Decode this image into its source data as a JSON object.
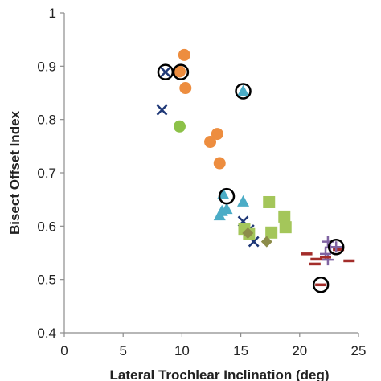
{
  "chart_data": {
    "type": "scatter",
    "xlabel": "Lateral Trochlear Inclination (deg)",
    "ylabel": "Bisect Offset Index",
    "xlim": [
      0,
      25
    ],
    "ylim": [
      0.4,
      1.0
    ],
    "x_ticks": [
      "0",
      "5",
      "10",
      "15",
      "20",
      "25"
    ],
    "y_ticks": [
      "0.4",
      "0.5",
      "0.6",
      "0.7",
      "0.8",
      "0.9",
      "1"
    ],
    "grid": false,
    "legend": "none",
    "series": [
      {
        "marker": "circle",
        "color": "#ed8d3f",
        "points": [
          [
            10.2,
            0.921
          ],
          [
            9.8,
            0.89
          ],
          [
            10.3,
            0.859
          ],
          [
            13.0,
            0.773
          ],
          [
            12.4,
            0.758
          ],
          [
            13.2,
            0.718
          ]
        ]
      },
      {
        "marker": "circle",
        "color": "#8cc148",
        "points": [
          [
            9.8,
            0.787
          ]
        ]
      },
      {
        "marker": "x",
        "color": "#1f3877",
        "points": [
          [
            8.3,
            0.818
          ],
          [
            15.2,
            0.609
          ],
          [
            15.7,
            0.593
          ],
          [
            16.1,
            0.571
          ]
        ]
      },
      {
        "marker": "triangle",
        "color": "#4bacc6",
        "points": [
          [
            15.2,
            0.853
          ],
          [
            13.5,
            0.66
          ],
          [
            15.2,
            0.646
          ],
          [
            13.4,
            0.628
          ],
          [
            13.8,
            0.632
          ],
          [
            13.2,
            0.62
          ]
        ]
      },
      {
        "marker": "square",
        "color": "#a4c65a",
        "points": [
          [
            17.4,
            0.645
          ],
          [
            18.7,
            0.618
          ],
          [
            18.8,
            0.598
          ],
          [
            17.6,
            0.588
          ],
          [
            15.3,
            0.595
          ],
          [
            15.7,
            0.585
          ]
        ]
      },
      {
        "marker": "diamond",
        "color": "#8c8c4a",
        "points": [
          [
            15.6,
            0.587
          ],
          [
            17.2,
            0.571
          ]
        ]
      },
      {
        "marker": "plus",
        "color": "#8064a2",
        "points": [
          [
            22.4,
            0.571
          ],
          [
            22.6,
            0.56
          ],
          [
            22.2,
            0.548
          ],
          [
            22.4,
            0.537
          ]
        ]
      },
      {
        "marker": "dash",
        "color": "#a32d2a",
        "points": [
          [
            20.6,
            0.548
          ],
          [
            21.4,
            0.538
          ],
          [
            22.2,
            0.542
          ],
          [
            23.3,
            0.556
          ],
          [
            24.2,
            0.535
          ],
          [
            21.3,
            0.529
          ]
        ]
      },
      {
        "marker": "open-circle",
        "color": "#000000",
        "points": [
          [
            8.6,
            0.889
          ],
          [
            9.9,
            0.889
          ],
          [
            15.2,
            0.853
          ],
          [
            13.8,
            0.656
          ],
          [
            23.1,
            0.561
          ],
          [
            21.8,
            0.49
          ]
        ]
      },
      {
        "marker": "x",
        "color": "#1f3877",
        "points": [
          [
            8.6,
            0.889
          ]
        ]
      },
      {
        "marker": "dash",
        "color": "#a32d2a",
        "points": [
          [
            21.8,
            0.49
          ]
        ]
      },
      {
        "marker": "plus",
        "color": "#8064a2",
        "points": [
          [
            23.1,
            0.561
          ]
        ]
      }
    ]
  }
}
